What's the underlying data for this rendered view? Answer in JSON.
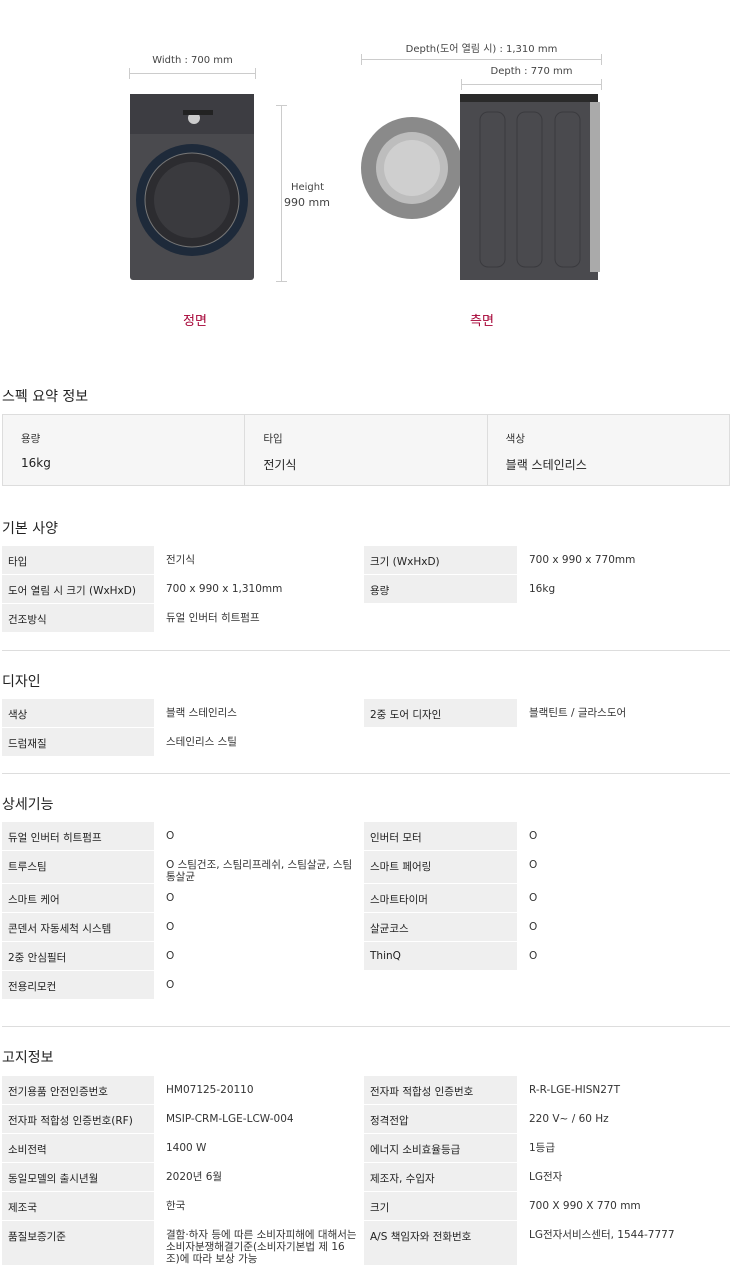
{
  "dimensions": {
    "width": "Width : 700 mm",
    "height_label": "Height",
    "height_value": "990 mm",
    "depth_open": "Depth(도어 열림 시) : 1,310 mm",
    "depth": "Depth : 770 mm",
    "front_label": "정면",
    "side_label": "측면"
  },
  "summary": {
    "title": "스펙 요약 정보",
    "items": [
      {
        "k": "용량",
        "v": "16kg"
      },
      {
        "k": "타입",
        "v": "전기식"
      },
      {
        "k": "색상",
        "v": "블랙 스테인리스"
      }
    ]
  },
  "sections": [
    {
      "title": "기본 사양",
      "rows": [
        [
          "타입",
          "전기식",
          "크기 (WxHxD)",
          "700 x 990 x 770mm"
        ],
        [
          "도어 열림 시 크기 (WxHxD)",
          "700 x 990 x 1,310mm",
          "용량",
          "16kg"
        ],
        [
          "건조방식",
          "듀얼 인버터 히트펌프",
          "",
          ""
        ]
      ]
    },
    {
      "title": "디자인",
      "rows": [
        [
          "색상",
          "블랙 스테인리스",
          "2중 도어 디자인",
          "블랙틴트 / 글라스도어"
        ],
        [
          "드럼재질",
          "스테인리스 스틸",
          "",
          ""
        ]
      ]
    },
    {
      "title": "상세기능",
      "rows": [
        [
          "듀얼 인버터 히트펌프",
          "O",
          "인버터 모터",
          "O"
        ],
        [
          "트루스팀",
          "O 스팀건조, 스팀리프레쉬, 스팀살균, 스팀통살균",
          "스마트 페어링",
          "O"
        ],
        [
          "스마트 케어",
          "O",
          "스마트타이머",
          "O"
        ],
        [
          "콘덴서 자동세척 시스템",
          "O",
          "살균코스",
          "O"
        ],
        [
          "2중 안심필터",
          "O",
          "ThinQ",
          "O"
        ],
        [
          "전용리모컨",
          "O",
          "",
          ""
        ]
      ]
    },
    {
      "title": "고지정보",
      "rows": [
        [
          "전기용품 안전인증번호",
          "HM07125-20110",
          "전자파 적합성 인증번호",
          "R-R-LGE-HISN27T"
        ],
        [
          "전자파 적합성 인증번호(RF)",
          "MSIP-CRM-LGE-LCW-004",
          "정격전압",
          "220 V~ / 60 Hz"
        ],
        [
          "소비전력",
          "1400 W",
          "에너지 소비효율등급",
          "1등급"
        ],
        [
          "동일모델의 출시년월",
          "2020년 6월",
          "제조자, 수입자",
          "LG전자"
        ],
        [
          "제조국",
          "한국",
          "크기",
          "700 X 990 X 770 mm"
        ],
        [
          "품질보증기준",
          "결함·하자 등에 따른 소비자피해에 대해서는 소비자분쟁해결기준(소비자기본법 제 16조)에 따라 보상 가능",
          "A/S 책임자와 전화번호",
          "LG전자서비스센터, 1544-7777"
        ]
      ]
    }
  ]
}
